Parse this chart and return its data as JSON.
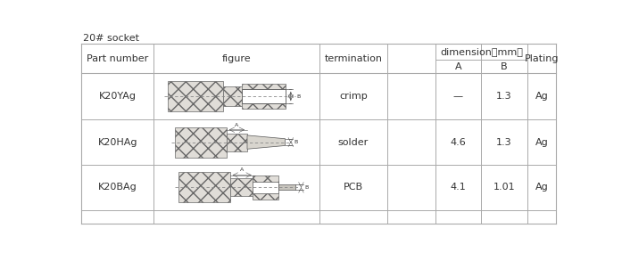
{
  "title": "20# socket",
  "rows": [
    {
      "part": "K20YAg",
      "termination": "crimp",
      "A": "—",
      "B": "1.3",
      "Plating": "Ag"
    },
    {
      "part": "K20HAg",
      "termination": "solder",
      "A": "4.6",
      "B": "1.3",
      "Plating": "Ag"
    },
    {
      "part": "K20BAg",
      "termination": "PCB",
      "A": "4.1",
      "B": "1.01",
      "Plating": "Ag"
    }
  ],
  "bg_color": "#ffffff",
  "line_color": "#aaaaaa",
  "text_color": "#333333",
  "title_fontsize": 8.5,
  "cell_fontsize": 8,
  "header_fontsize": 8
}
